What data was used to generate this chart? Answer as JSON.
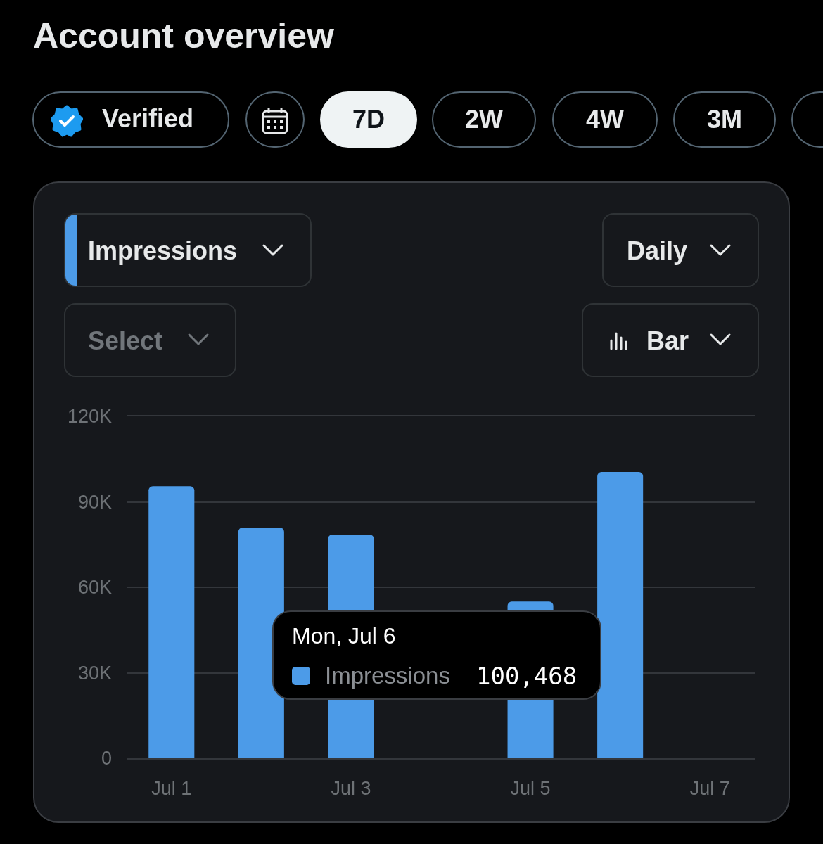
{
  "chart_data": {
    "type": "bar",
    "title": "Account overview",
    "categories": [
      "Jul 1",
      null,
      "Jul 3",
      null,
      "Jul 5",
      null,
      "Jul 7"
    ],
    "series": [
      {
        "name": "Impressions",
        "color": "#4c9be8",
        "values": [
          95500,
          81000,
          78500,
          null,
          55000,
          100468,
          null
        ]
      }
    ],
    "ylim": [
      0,
      120000
    ],
    "yticks": [
      0,
      {
        "value": 30000,
        "label": "30K"
      },
      {
        "value": 60000,
        "label": "60K"
      },
      {
        "value": 90000,
        "label": "90K"
      },
      {
        "value": 120000,
        "label": "120K"
      }
    ],
    "grid": "y",
    "annotations": [
      "Verified",
      "7D",
      "2W",
      "4W",
      "3M",
      "Daily",
      "Select",
      "Bar",
      "Mon, Jul 6",
      "100,468"
    ]
  }
}
